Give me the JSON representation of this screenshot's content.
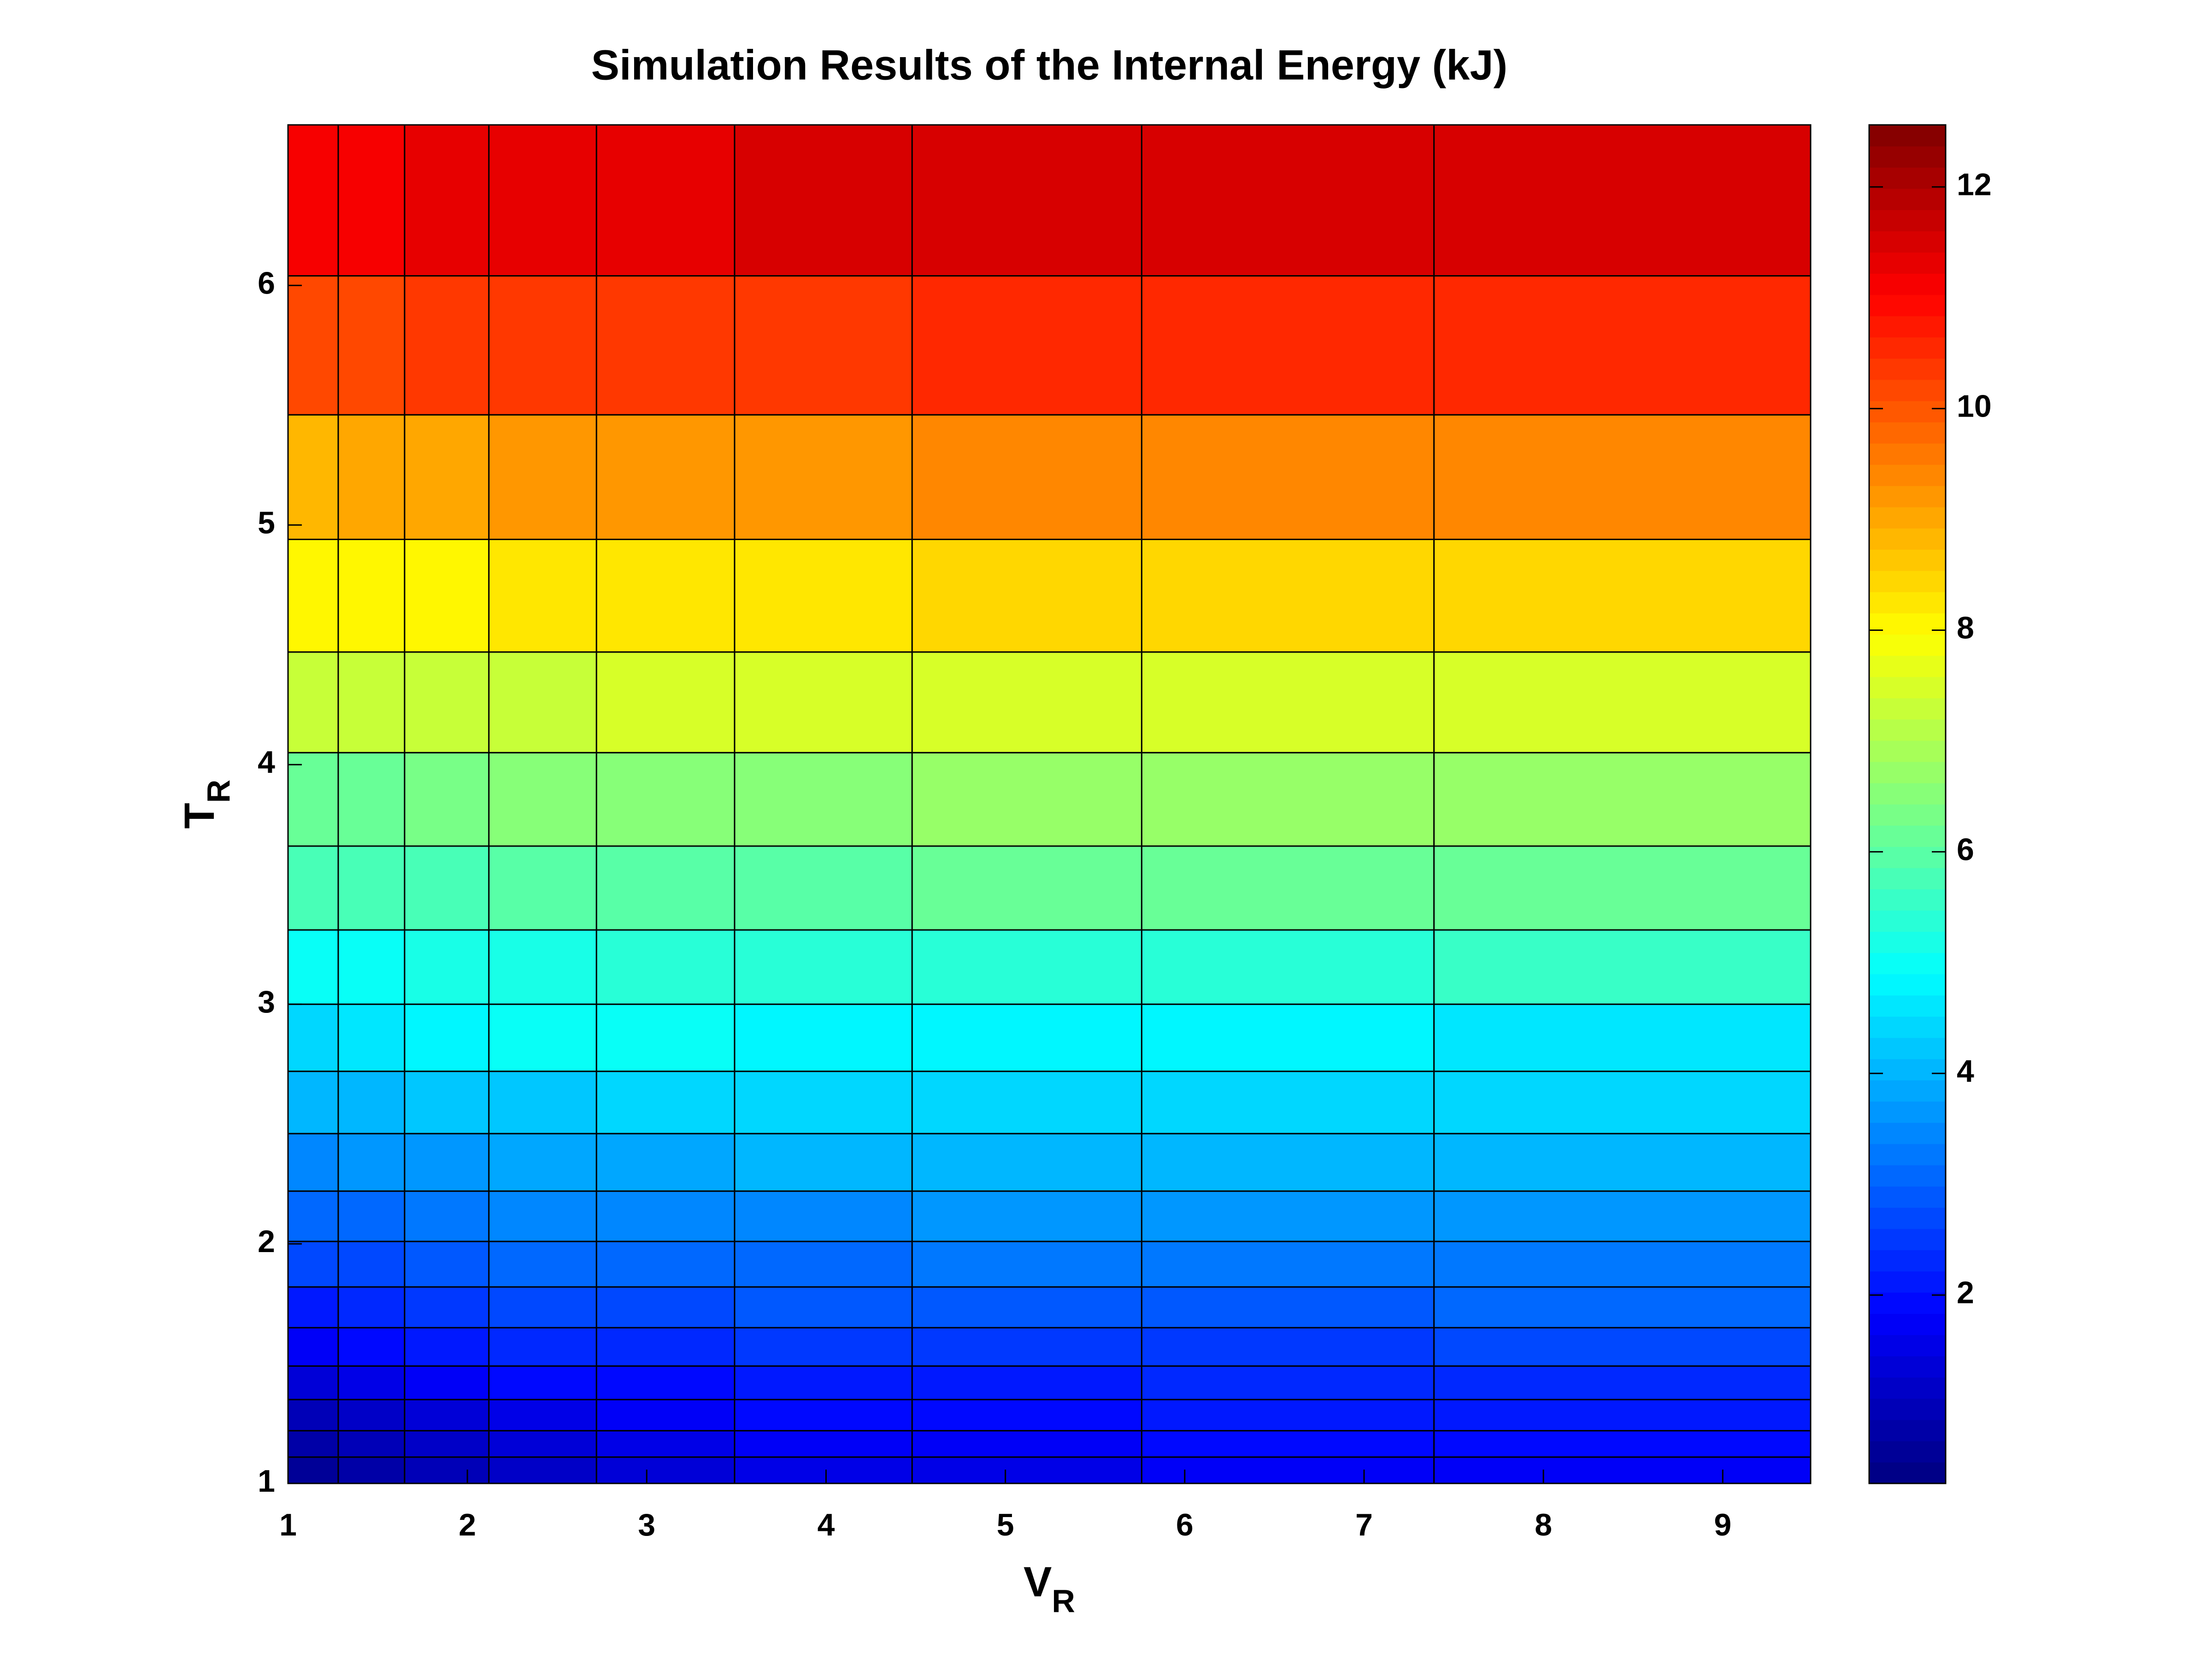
{
  "chart_data": {
    "type": "heatmap",
    "title": "Simulation Results of the Internal Energy (kJ)",
    "xlabel": {
      "main": "V",
      "sub": "R"
    },
    "ylabel": {
      "main": "T",
      "sub": "R"
    },
    "colormap": "jet",
    "x_edges": [
      1,
      1.28,
      1.65,
      2.12,
      2.72,
      3.49,
      4.48,
      5.76,
      7.39,
      9.49
    ],
    "y_edges": [
      1,
      1.11,
      1.22,
      1.35,
      1.49,
      1.65,
      1.82,
      2.01,
      2.22,
      2.46,
      2.72,
      3.0,
      3.31,
      3.66,
      4.05,
      4.47,
      4.94,
      5.46,
      6.04,
      6.67
    ],
    "values": [
      [
        0.5,
        0.7,
        1.0,
        1.2,
        1.4,
        1.5,
        1.6,
        1.7,
        1.8
      ],
      [
        0.7,
        0.94,
        1.16,
        1.36,
        1.52,
        1.65,
        1.76,
        1.84,
        1.9
      ],
      [
        1.0,
        1.22,
        1.42,
        1.6,
        1.75,
        1.87,
        1.97,
        2.05,
        2.1
      ],
      [
        1.4,
        1.58,
        1.74,
        1.9,
        2.01,
        2.11,
        2.19,
        2.26,
        2.3
      ],
      [
        1.8,
        1.96,
        2.1,
        2.24,
        2.34,
        2.43,
        2.5,
        2.56,
        2.6
      ],
      [
        2.1,
        2.28,
        2.44,
        2.6,
        2.71,
        2.81,
        2.89,
        2.96,
        3.0
      ],
      [
        2.6,
        2.74,
        2.87,
        2.99,
        3.08,
        3.15,
        3.22,
        3.27,
        3.3
      ],
      [
        3.0,
        3.14,
        3.27,
        3.39,
        3.48,
        3.55,
        3.62,
        3.67,
        3.7
      ],
      [
        3.5,
        3.62,
        3.73,
        3.83,
        3.91,
        3.97,
        4.03,
        4.07,
        4.1
      ],
      [
        4.0,
        4.1,
        4.19,
        4.28,
        4.34,
        4.4,
        4.44,
        4.48,
        4.5
      ],
      [
        4.5,
        4.6,
        4.8,
        4.9,
        4.95,
        4.85,
        4.8,
        4.75,
        4.7
      ],
      [
        4.9,
        5.02,
        5.13,
        5.23,
        5.31,
        5.37,
        5.43,
        5.47,
        5.5
      ],
      [
        5.7,
        5.78,
        5.85,
        5.92,
        5.97,
        6.02,
        6.05,
        6.08,
        6.1
      ],
      [
        6.1,
        6.22,
        6.33,
        6.43,
        6.51,
        6.57,
        6.63,
        6.67,
        6.7
      ],
      [
        7.2,
        7.26,
        7.31,
        7.37,
        7.4,
        7.44,
        7.46,
        7.49,
        7.5
      ],
      [
        8.0,
        8.08,
        8.15,
        8.22,
        8.27,
        8.32,
        8.35,
        8.38,
        8.4
      ],
      [
        8.9,
        9.0,
        9.09,
        9.18,
        9.24,
        9.3,
        9.34,
        9.38,
        9.4
      ],
      [
        10.2,
        10.26,
        10.31,
        10.37,
        10.4,
        10.44,
        10.46,
        10.49,
        10.5
      ],
      [
        11.1,
        11.18,
        11.25,
        11.32,
        11.37,
        11.42,
        11.45,
        11.48,
        11.5
      ]
    ],
    "xlim": [
      1,
      9.49
    ],
    "ylim": [
      1,
      6.67
    ],
    "xticks": [
      1,
      2,
      3,
      4,
      5,
      6,
      7,
      8,
      9
    ],
    "yticks": [
      1,
      2,
      3,
      4,
      5,
      6
    ],
    "clim": [
      0.3,
      12.56
    ],
    "cticks": [
      2,
      4,
      6,
      8,
      10,
      12
    ]
  }
}
